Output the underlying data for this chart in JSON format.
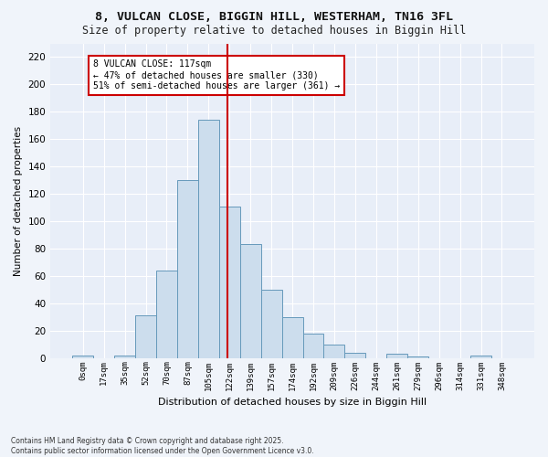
{
  "title": "8, VULCAN CLOSE, BIGGIN HILL, WESTERHAM, TN16 3FL",
  "subtitle": "Size of property relative to detached houses in Biggin Hill",
  "xlabel": "Distribution of detached houses by size in Biggin Hill",
  "ylabel": "Number of detached properties",
  "bar_color": "#ccdded",
  "bar_edge_color": "#6699bb",
  "bg_color": "#e8eef8",
  "grid_color": "#ffffff",
  "categories": [
    "0sqm",
    "17sqm",
    "35sqm",
    "52sqm",
    "70sqm",
    "87sqm",
    "105sqm",
    "122sqm",
    "139sqm",
    "157sqm",
    "174sqm",
    "192sqm",
    "209sqm",
    "226sqm",
    "244sqm",
    "261sqm",
    "279sqm",
    "296sqm",
    "314sqm",
    "331sqm",
    "348sqm"
  ],
  "values": [
    2,
    0,
    2,
    31,
    64,
    130,
    174,
    111,
    83,
    50,
    30,
    18,
    10,
    4,
    0,
    3,
    1,
    0,
    0,
    2,
    0
  ],
  "property_line_x": 117,
  "bin_width": 17,
  "annotation_text": "8 VULCAN CLOSE: 117sqm\n← 47% of detached houses are smaller (330)\n51% of semi-detached houses are larger (361) →",
  "annotation_box_color": "#ffffff",
  "annotation_box_edge_color": "#cc0000",
  "vline_color": "#cc0000",
  "footnote": "Contains HM Land Registry data © Crown copyright and database right 2025.\nContains public sector information licensed under the Open Government Licence v3.0.",
  "ylim": [
    0,
    230
  ],
  "yticks": [
    0,
    20,
    40,
    60,
    80,
    100,
    120,
    140,
    160,
    180,
    200,
    220
  ],
  "fig_bg": "#f0f4fa"
}
